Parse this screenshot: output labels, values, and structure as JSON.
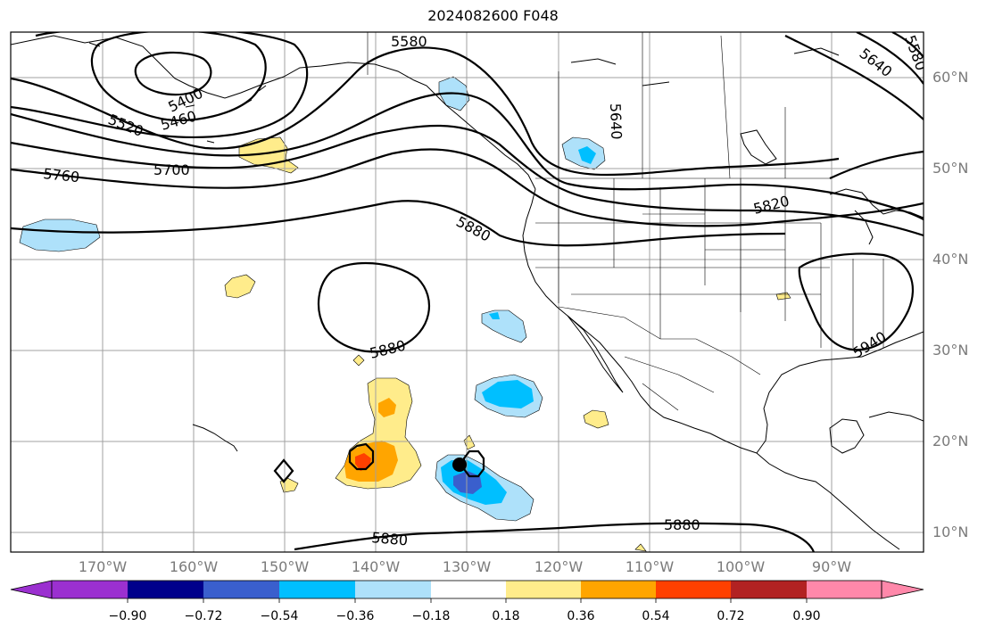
{
  "title": "2024082600 F048",
  "lat_labels": [
    "60°N",
    "50°N",
    "40°N",
    "30°N",
    "20°N",
    "10°N"
  ],
  "lon_labels": [
    "170°W",
    "160°W",
    "150°W",
    "140°W",
    "130°W",
    "120°W",
    "110°W",
    "100°W",
    "90°W"
  ],
  "contour_labels": [
    "5580",
    "5640",
    "5400",
    "5460",
    "5520",
    "5700",
    "5760",
    "5880",
    "5820",
    "5880",
    "5940",
    "5880",
    "5880",
    "5640",
    "5580"
  ],
  "colorbar": {
    "ticks": [
      "−0.90",
      "−0.72",
      "−0.54",
      "−0.36",
      "−0.18",
      "0.18",
      "0.36",
      "0.54",
      "0.72",
      "0.90"
    ],
    "colors": [
      "#9b30d0",
      "#00008b",
      "#3a5fcd",
      "#00bfff",
      "#aee1fa",
      "#ffffff",
      "#ffec8b",
      "#ffa500",
      "#ff4000",
      "#b22222",
      "#ff88aa"
    ]
  },
  "colors": {
    "light_blue": "#aee1fa",
    "cyan": "#00bfff",
    "blue": "#3a5fcd",
    "light_yellow": "#ffec8b",
    "orange": "#ffa500",
    "red_orange": "#ff4000"
  }
}
